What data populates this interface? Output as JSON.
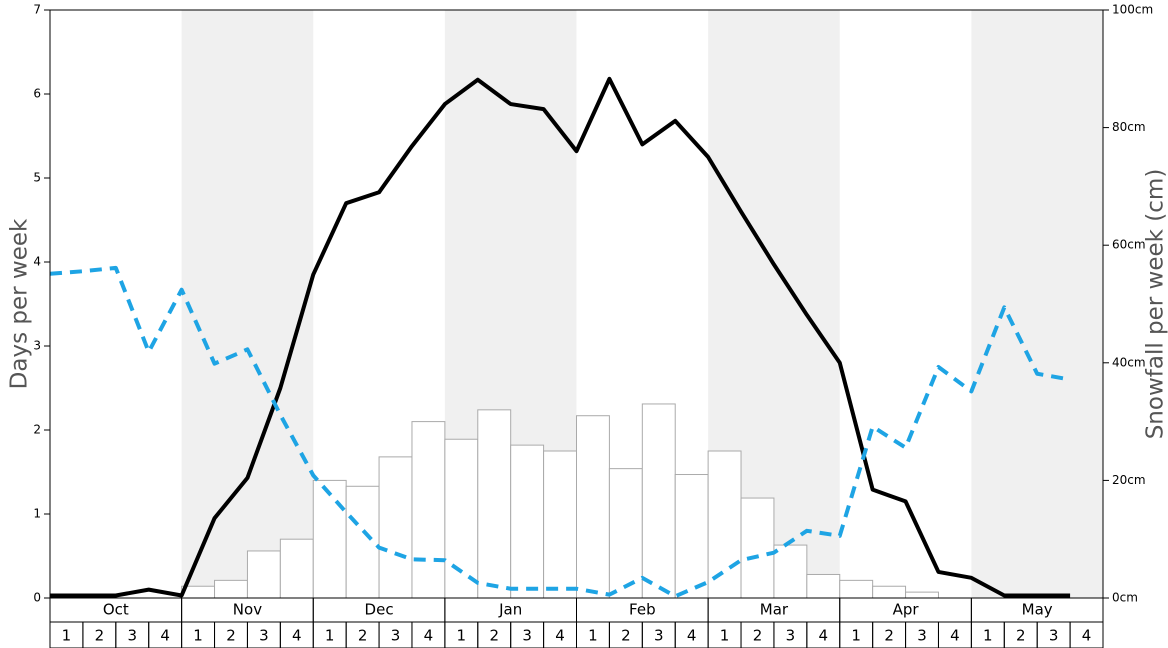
{
  "chart_data": {
    "type": "bar",
    "y_label": "Days per week",
    "y2_label": "Snowfall per week (cm)",
    "months": [
      "Oct",
      "Nov",
      "Dec",
      "Jan",
      "Feb",
      "Mar",
      "Apr",
      "May"
    ],
    "categories": [
      "1",
      "2",
      "3",
      "4",
      "1",
      "2",
      "3",
      "4",
      "1",
      "2",
      "3",
      "4",
      "1",
      "2",
      "3",
      "4",
      "1",
      "2",
      "3",
      "4",
      "1",
      "2",
      "3",
      "4",
      "1",
      "2",
      "3",
      "4",
      "1",
      "2",
      "3",
      "4"
    ],
    "ylim": [
      0,
      7
    ],
    "yticks": [
      0,
      1,
      2,
      3,
      4,
      5,
      6,
      7
    ],
    "y2lim": [
      0,
      100
    ],
    "y2ticks": [
      {
        "value": 0,
        "label": "0cm"
      },
      {
        "value": 20,
        "label": "20cm"
      },
      {
        "value": 40,
        "label": "40cm"
      },
      {
        "value": 60,
        "label": "60cm"
      },
      {
        "value": 80,
        "label": "80cm"
      },
      {
        "value": 100,
        "label": "100cm"
      }
    ],
    "series": [
      {
        "type": "bar",
        "axis": "y2",
        "color": "#ffffff",
        "values": [
          0,
          0,
          0,
          0,
          2,
          3,
          8,
          10,
          20,
          19,
          24,
          30,
          27,
          32,
          26,
          25,
          31,
          22,
          33,
          21,
          25,
          17,
          9,
          4,
          3,
          2,
          1,
          0,
          0,
          0,
          0,
          0
        ]
      },
      {
        "type": "line",
        "color": "#000000",
        "dashed": false,
        "values": [
          0.03,
          0.03,
          0.03,
          0.1,
          0.03,
          0.95,
          1.43,
          2.5,
          3.85,
          4.7,
          4.83,
          5.38,
          5.88,
          6.17,
          5.88,
          5.82,
          5.32,
          6.18,
          5.4,
          5.68,
          5.25,
          4.6,
          3.97,
          3.37,
          2.8,
          1.29,
          1.15,
          0.31,
          0.24,
          0.03,
          0.03,
          0.03
        ]
      },
      {
        "type": "line",
        "color": "#1ea4e4",
        "dashed": true,
        "values": [
          3.86,
          3.89,
          3.93,
          2.93,
          3.67,
          2.79,
          2.96,
          2.18,
          1.46,
          1.02,
          0.6,
          0.46,
          0.45,
          0.18,
          0.11,
          0.11,
          0.11,
          0.04,
          0.24,
          0.02,
          0.19,
          0.45,
          0.54,
          0.8,
          0.74,
          2.04,
          1.79,
          2.75,
          2.46,
          3.46,
          2.67,
          2.6
        ]
      }
    ]
  }
}
